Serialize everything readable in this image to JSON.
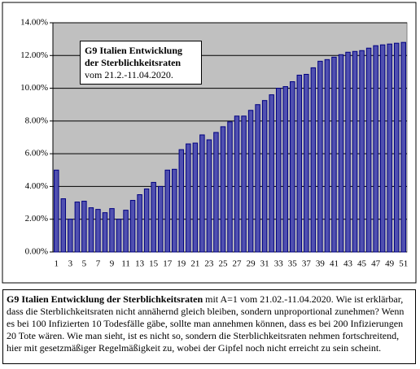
{
  "chart_data": {
    "type": "bar",
    "color": "#5050b0",
    "stroke": "#000080",
    "plot_background": "#c0c0c0",
    "categories": [
      1,
      null,
      3,
      null,
      5,
      null,
      7,
      null,
      9,
      null,
      11,
      null,
      13,
      null,
      15,
      null,
      17,
      null,
      19,
      null,
      21,
      null,
      23,
      null,
      25,
      null,
      27,
      null,
      29,
      null,
      31,
      null,
      33,
      null,
      35,
      null,
      37,
      null,
      39,
      null,
      41,
      null,
      43,
      null,
      45,
      null,
      47,
      null,
      49,
      null,
      51
    ],
    "values": [
      5.0,
      3.25,
      2.0,
      3.05,
      3.1,
      2.7,
      2.6,
      2.4,
      2.65,
      2.0,
      2.55,
      3.15,
      3.5,
      3.85,
      4.25,
      4.0,
      5.0,
      5.05,
      6.25,
      6.6,
      6.65,
      7.15,
      6.85,
      7.3,
      7.65,
      7.95,
      8.3,
      8.3,
      8.65,
      9.0,
      9.25,
      9.6,
      10.0,
      10.1,
      10.4,
      10.8,
      10.85,
      11.25,
      11.65,
      11.75,
      11.9,
      12.05,
      12.2,
      12.25,
      12.3,
      12.45,
      12.6,
      12.65,
      12.7,
      12.75,
      12.8
    ],
    "ylim": [
      0,
      14
    ],
    "yticks": [
      {
        "value": 0,
        "label": "0.00%"
      },
      {
        "value": 2,
        "label": "2.00%"
      },
      {
        "value": 4,
        "label": "4.00%"
      },
      {
        "value": 6,
        "label": "6.00%"
      },
      {
        "value": 8,
        "label": "8.00%"
      },
      {
        "value": 10,
        "label": "10.00%"
      },
      {
        "value": 12,
        "label": "12.00%"
      },
      {
        "value": 14,
        "label": "14.00%"
      }
    ],
    "grid": true,
    "annotation": {
      "title": "G9  Italien Entwicklung der Sterblichkeitsraten",
      "text": "vom 21.2.-11.04.2020."
    }
  },
  "note": {
    "title": "G9  Italien Entwicklung der Sterblichkeitsraten",
    "text": "mit A=1 vom 21.02.-11.04.2020. Wie ist erklärbar, dass die Sterblichkeitsraten nicht annähernd gleich bleiben, sondern unproportional zunehmen? Wenn es bei 100 Infizierten 10 Todesfälle gäbe, sollte man annehmen können, dass es bei 200 Infizierungen 20 Tote wären. Wie man sieht, ist es nicht so, sondern die Sterblichkeitsraten nehmen fortschreitend, hier mit gesetzmäßiger Regelmäßigkeit zu, wobei der Gipfel noch nicht erreicht zu sein scheint."
  }
}
